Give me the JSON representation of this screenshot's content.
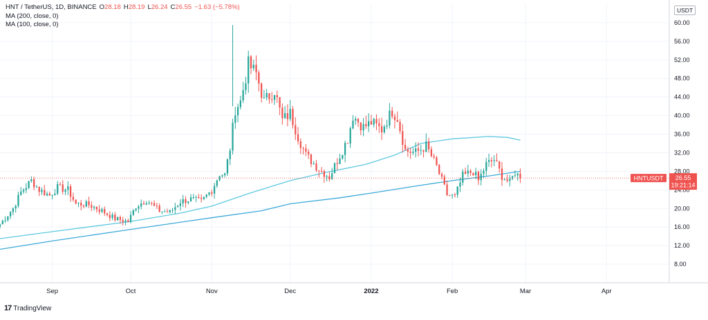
{
  "legend": {
    "symbol": "HNT / TetherUS, 1D, BINANCE",
    "open_key": "O",
    "open": "28.18",
    "high_key": "H",
    "high": "28.19",
    "low_key": "L",
    "low": "26.24",
    "close_key": "C",
    "close": "26.55",
    "change": "−1.63 (−5.78%)",
    "ma200": "MA (200, close, 0)",
    "ma100": "MA (100, close, 0)"
  },
  "currency_badge": "USDT",
  "price_tag": {
    "symbol": "HNTUSDT",
    "price": "26.55",
    "countdown": "19:21:14"
  },
  "footer": {
    "brand": "TradingView"
  },
  "colors": {
    "up": "#26a69a",
    "down": "#ef5350",
    "ma200": "#3ba9d9",
    "ma100": "#5bc8e0",
    "grid": "#f0f3fa",
    "price_tag": "#ef5350"
  },
  "chart_data": {
    "type": "candlestick",
    "title": "HNT / TetherUS, 1D, BINANCE",
    "y_axis_side": "right",
    "ylim": [
      4,
      64
    ],
    "y_ticks": [
      8,
      12,
      16,
      20,
      24,
      28,
      32,
      36,
      40,
      44,
      48,
      52,
      56,
      60
    ],
    "y_tick_labels": [
      "8.00",
      "12.00",
      "16.00",
      "20.00",
      "24.00",
      "28.00",
      "32.00",
      "36.00",
      "40.00",
      "44.00",
      "48.00",
      "52.00",
      "56.00",
      "60.00"
    ],
    "x_range": [
      "2021-08-12",
      "2022-04-25"
    ],
    "x_ticks": [
      {
        "label": "Sep",
        "date": "2021-09-01",
        "bold": false
      },
      {
        "label": "Oct",
        "date": "2021-10-01",
        "bold": false
      },
      {
        "label": "Nov",
        "date": "2021-11-01",
        "bold": false
      },
      {
        "label": "Dec",
        "date": "2021-12-01",
        "bold": false
      },
      {
        "label": "2022",
        "date": "2022-01-01",
        "bold": true
      },
      {
        "label": "Feb",
        "date": "2022-02-01",
        "bold": false
      },
      {
        "label": "Mar",
        "date": "2022-03-01",
        "bold": false
      },
      {
        "label": "Apr",
        "date": "2022-04-01",
        "bold": false
      }
    ],
    "grid": true,
    "start_date": "2021-08-12",
    "close_keypoints": [
      [
        "2021-08-12",
        16.6
      ],
      [
        "2021-08-17",
        20.0
      ],
      [
        "2021-08-20",
        23.5
      ],
      [
        "2021-08-24",
        26.0
      ],
      [
        "2021-08-27",
        24.0
      ],
      [
        "2021-08-31",
        22.8
      ],
      [
        "2021-09-03",
        24.5
      ],
      [
        "2021-09-07",
        24.0
      ],
      [
        "2021-09-10",
        21.0
      ],
      [
        "2021-09-15",
        20.8
      ],
      [
        "2021-09-20",
        19.5
      ],
      [
        "2021-09-25",
        17.8
      ],
      [
        "2021-09-30",
        17.2
      ],
      [
        "2021-10-03",
        20.5
      ],
      [
        "2021-10-07",
        21.8
      ],
      [
        "2021-10-12",
        19.5
      ],
      [
        "2021-10-16",
        19.2
      ],
      [
        "2021-10-20",
        21.5
      ],
      [
        "2021-10-24",
        22.0
      ],
      [
        "2021-10-28",
        21.5
      ],
      [
        "2021-11-01",
        24.0
      ],
      [
        "2021-11-04",
        27.5
      ],
      [
        "2021-11-06",
        27.2
      ],
      [
        "2021-11-08",
        33.0
      ],
      [
        "2021-11-10",
        41.5
      ],
      [
        "2021-11-12",
        43.0
      ],
      [
        "2021-11-15",
        51.0
      ],
      [
        "2021-11-18",
        49.0
      ],
      [
        "2021-11-21",
        43.0
      ],
      [
        "2021-11-25",
        45.5
      ],
      [
        "2021-11-28",
        39.0
      ],
      [
        "2021-12-01",
        40.5
      ],
      [
        "2021-12-04",
        35.5
      ],
      [
        "2021-12-07",
        31.5
      ],
      [
        "2021-12-12",
        28.5
      ],
      [
        "2021-12-16",
        26.8
      ],
      [
        "2021-12-20",
        31.5
      ],
      [
        "2021-12-23",
        35.0
      ],
      [
        "2021-12-25",
        40.0
      ],
      [
        "2021-12-29",
        37.5
      ],
      [
        "2022-01-01",
        38.5
      ],
      [
        "2022-01-05",
        37.0
      ],
      [
        "2022-01-09",
        41.0
      ],
      [
        "2022-01-11",
        39.5
      ],
      [
        "2022-01-14",
        32.5
      ],
      [
        "2022-01-18",
        32.0
      ],
      [
        "2022-01-22",
        33.5
      ],
      [
        "2022-01-26",
        29.0
      ],
      [
        "2022-01-30",
        23.0
      ],
      [
        "2022-02-02",
        22.5
      ],
      [
        "2022-02-05",
        27.0
      ],
      [
        "2022-02-09",
        28.0
      ],
      [
        "2022-02-11",
        26.0
      ],
      [
        "2022-02-14",
        29.5
      ],
      [
        "2022-02-17",
        30.5
      ],
      [
        "2022-02-20",
        27.0
      ],
      [
        "2022-02-23",
        25.5
      ],
      [
        "2022-02-25",
        27.8
      ],
      [
        "2022-02-27",
        26.55
      ]
    ],
    "ma200": [
      [
        "2021-08-12",
        11.2
      ],
      [
        "2021-09-01",
        13.0
      ],
      [
        "2021-10-01",
        15.5
      ],
      [
        "2021-11-01",
        18.0
      ],
      [
        "2021-11-20",
        19.5
      ],
      [
        "2021-12-01",
        21.0
      ],
      [
        "2021-12-20",
        22.3
      ],
      [
        "2022-01-01",
        23.3
      ],
      [
        "2022-01-20",
        25.0
      ],
      [
        "2022-02-01",
        26.0
      ],
      [
        "2022-02-15",
        27.0
      ],
      [
        "2022-02-27",
        28.0
      ]
    ],
    "ma100": [
      [
        "2021-08-12",
        13.5
      ],
      [
        "2021-09-01",
        15.0
      ],
      [
        "2021-10-01",
        17.2
      ],
      [
        "2021-10-20",
        19.0
      ],
      [
        "2021-11-01",
        20.5
      ],
      [
        "2021-11-15",
        23.2
      ],
      [
        "2021-12-01",
        26.0
      ],
      [
        "2021-12-15",
        27.8
      ],
      [
        "2021-12-30",
        29.5
      ],
      [
        "2022-01-10",
        31.5
      ],
      [
        "2022-01-20",
        34.0
      ],
      [
        "2022-02-01",
        35.0
      ],
      [
        "2022-02-15",
        35.5
      ],
      [
        "2022-02-22",
        35.3
      ],
      [
        "2022-02-27",
        34.7
      ]
    ],
    "last_price": 26.55,
    "last_price_line": "dotted"
  }
}
